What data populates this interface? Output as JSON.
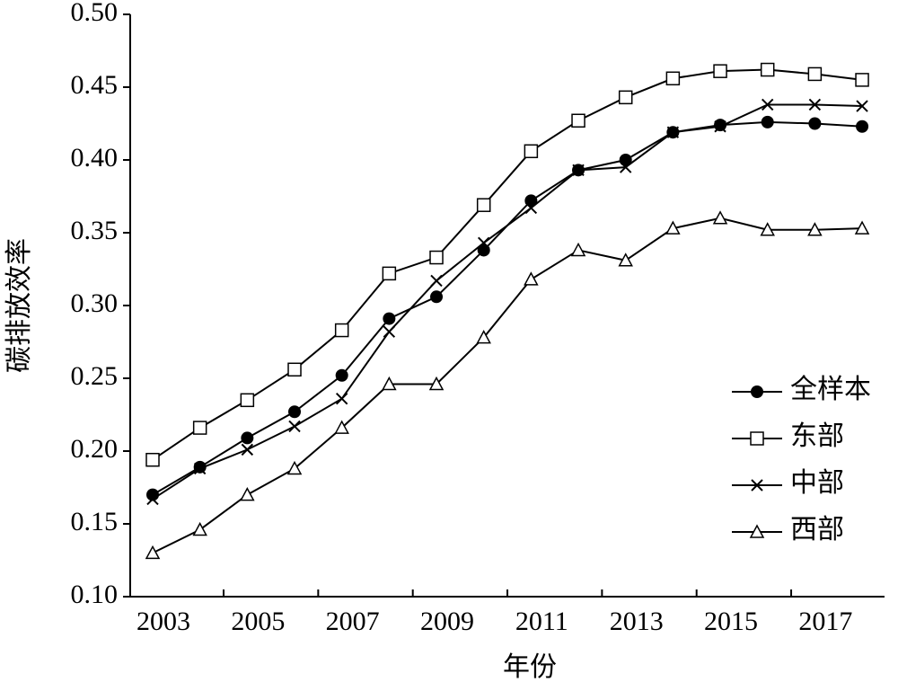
{
  "chart_data": {
    "type": "line",
    "x_label": "年份",
    "y_label": "碳排放效率",
    "categories": [
      "2003",
      null,
      "2005",
      null,
      "2007",
      null,
      "2009",
      null,
      "2011",
      null,
      "2013",
      null,
      "2015",
      null,
      "2017",
      null
    ],
    "ylim": [
      0.1,
      0.5
    ],
    "yticks": [
      {
        "value": 0.1,
        "label": "0.10"
      },
      0.15,
      {
        "value": 0.2,
        "label": "0.20"
      },
      0.25,
      {
        "value": 0.3,
        "label": "0.30"
      },
      0.35,
      {
        "value": 0.4,
        "label": "0.40"
      },
      0.45,
      {
        "value": 0.5,
        "label": "0.50"
      }
    ],
    "legend": "lower right",
    "series": [
      {
        "name": "全样本",
        "color": "#000000",
        "marker": "circle",
        "values": [
          0.17,
          0.189,
          0.209,
          0.227,
          0.252,
          0.291,
          0.306,
          0.338,
          0.372,
          0.393,
          0.4,
          0.419,
          0.424,
          0.426,
          0.425,
          0.423
        ]
      },
      {
        "name": "东部",
        "color": "#000000",
        "marker": "square",
        "values": [
          0.194,
          0.216,
          0.235,
          0.256,
          0.283,
          0.322,
          0.333,
          0.369,
          0.406,
          0.427,
          0.443,
          0.456,
          0.461,
          0.462,
          0.459,
          0.455
        ]
      },
      {
        "name": "中部",
        "color": "#000000",
        "marker": "x",
        "values": [
          0.167,
          0.188,
          0.201,
          0.217,
          0.236,
          0.282,
          0.317,
          0.343,
          0.367,
          0.393,
          0.395,
          0.419,
          0.423,
          0.438,
          0.438,
          0.437
        ]
      },
      {
        "name": "西部",
        "color": "#000000",
        "marker": "triangle",
        "values": [
          0.13,
          0.146,
          0.17,
          0.188,
          0.216,
          0.246,
          0.246,
          0.278,
          0.318,
          0.338,
          0.331,
          0.353,
          0.36,
          0.352,
          0.352,
          0.353
        ]
      }
    ]
  }
}
